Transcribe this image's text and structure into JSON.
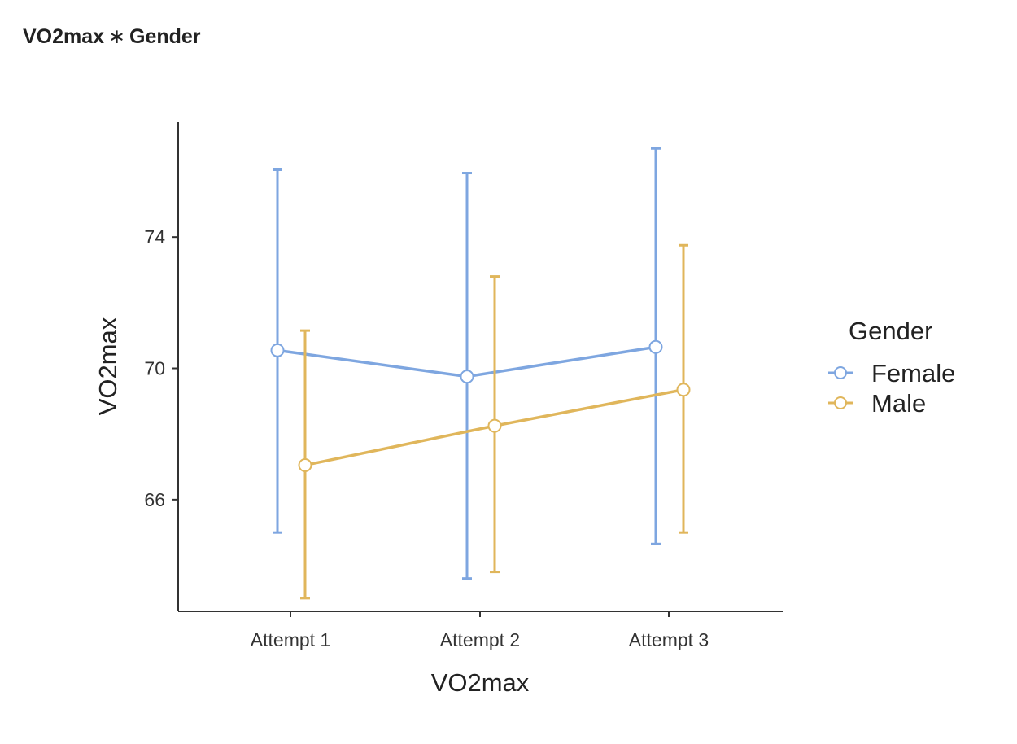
{
  "page": {
    "title_left": "VO2max",
    "title_sep": "∗",
    "title_right": "Gender"
  },
  "chart_data": {
    "type": "line",
    "title": "",
    "xlabel": "VO2max",
    "ylabel": "VO2max",
    "categories": [
      "Attempt 1",
      "Attempt 2",
      "Attempt 3"
    ],
    "ylim": [
      62.6,
      77.5
    ],
    "yticks": [
      66,
      70,
      74
    ],
    "grid": false,
    "legend": {
      "title": "Gender",
      "position": "right"
    },
    "series": [
      {
        "name": "Female",
        "color": "#7ea6e0",
        "values": [
          70.55,
          69.75,
          70.65
        ],
        "lower": [
          65.0,
          63.6,
          64.65
        ],
        "upper": [
          76.05,
          75.95,
          76.7
        ]
      },
      {
        "name": "Male",
        "color": "#e0b65b",
        "values": [
          67.05,
          68.25,
          69.35
        ],
        "lower": [
          63.0,
          63.8,
          65.0
        ],
        "upper": [
          71.15,
          72.8,
          73.75
        ]
      }
    ]
  }
}
